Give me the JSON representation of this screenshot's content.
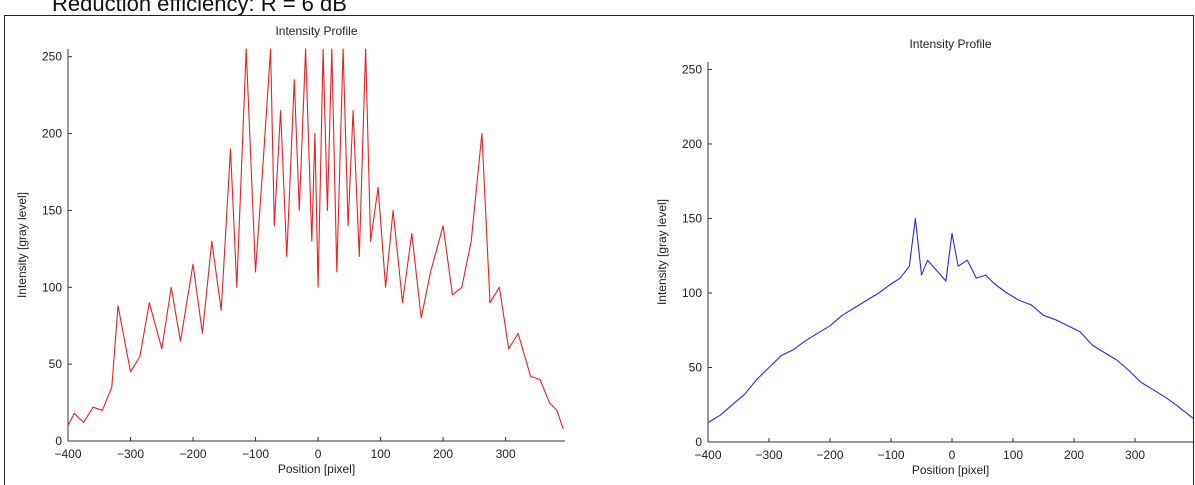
{
  "caption": "Reduction efficiency: R = 6 dB",
  "chart_data": [
    {
      "type": "line",
      "title": "Intensity Profile",
      "xlabel": "Position [pixel]",
      "ylabel": "Intensity [gray level]",
      "xlim": [
        -400,
        395
      ],
      "ylim": [
        0,
        255
      ],
      "xticks": [
        -400,
        -300,
        -200,
        -100,
        0,
        100,
        200,
        300
      ],
      "yticks": [
        0,
        50,
        100,
        150,
        200,
        250
      ],
      "color": "#e8202a",
      "series": [
        {
          "x": [
            -400,
            -390,
            -375,
            -360,
            -345,
            -330,
            -320,
            -300,
            -285,
            -270,
            -250,
            -235,
            -220,
            -200,
            -185,
            -170,
            -155,
            -140,
            -130,
            -115,
            -100,
            -88,
            -76,
            -70,
            -60,
            -50,
            -38,
            -30,
            -20,
            -10,
            -5,
            0,
            8,
            15,
            22,
            30,
            40,
            48,
            56,
            66,
            76,
            84,
            96,
            108,
            120,
            135,
            150,
            165,
            180,
            200,
            215,
            230,
            245,
            262,
            275,
            290,
            305,
            320,
            340,
            355,
            370,
            382,
            392
          ],
          "y": [
            10,
            18,
            12,
            22,
            20,
            35,
            88,
            45,
            55,
            90,
            60,
            100,
            65,
            115,
            70,
            130,
            85,
            190,
            100,
            255,
            110,
            180,
            255,
            140,
            215,
            120,
            235,
            150,
            255,
            130,
            200,
            100,
            255,
            150,
            255,
            110,
            255,
            140,
            215,
            120,
            255,
            130,
            165,
            100,
            150,
            90,
            135,
            80,
            110,
            140,
            95,
            100,
            130,
            200,
            90,
            100,
            60,
            70,
            42,
            40,
            25,
            20,
            8
          ]
        }
      ]
    },
    {
      "type": "line",
      "title": "Intensity Profile",
      "xlabel": "Position [pixel]",
      "ylabel": "Intensity [gray level]",
      "xlim": [
        -400,
        395
      ],
      "ylim": [
        0,
        255
      ],
      "xticks": [
        -400,
        -300,
        -200,
        -100,
        0,
        100,
        200,
        300
      ],
      "yticks": [
        0,
        50,
        100,
        150,
        200,
        250
      ],
      "color": "#2a2ae6",
      "series": [
        {
          "x": [
            -400,
            -380,
            -360,
            -340,
            -320,
            -300,
            -280,
            -260,
            -240,
            -220,
            -200,
            -180,
            -160,
            -140,
            -120,
            -100,
            -85,
            -70,
            -60,
            -50,
            -40,
            -25,
            -10,
            0,
            10,
            25,
            40,
            55,
            70,
            90,
            110,
            130,
            150,
            170,
            190,
            210,
            230,
            250,
            270,
            290,
            310,
            330,
            350,
            370,
            395
          ],
          "y": [
            13,
            18,
            25,
            32,
            42,
            50,
            58,
            62,
            68,
            73,
            78,
            85,
            90,
            95,
            100,
            106,
            110,
            118,
            150,
            112,
            122,
            115,
            108,
            140,
            118,
            122,
            110,
            112,
            106,
            100,
            95,
            92,
            85,
            82,
            78,
            74,
            65,
            60,
            55,
            48,
            40,
            35,
            30,
            24,
            16
          ]
        }
      ]
    }
  ]
}
